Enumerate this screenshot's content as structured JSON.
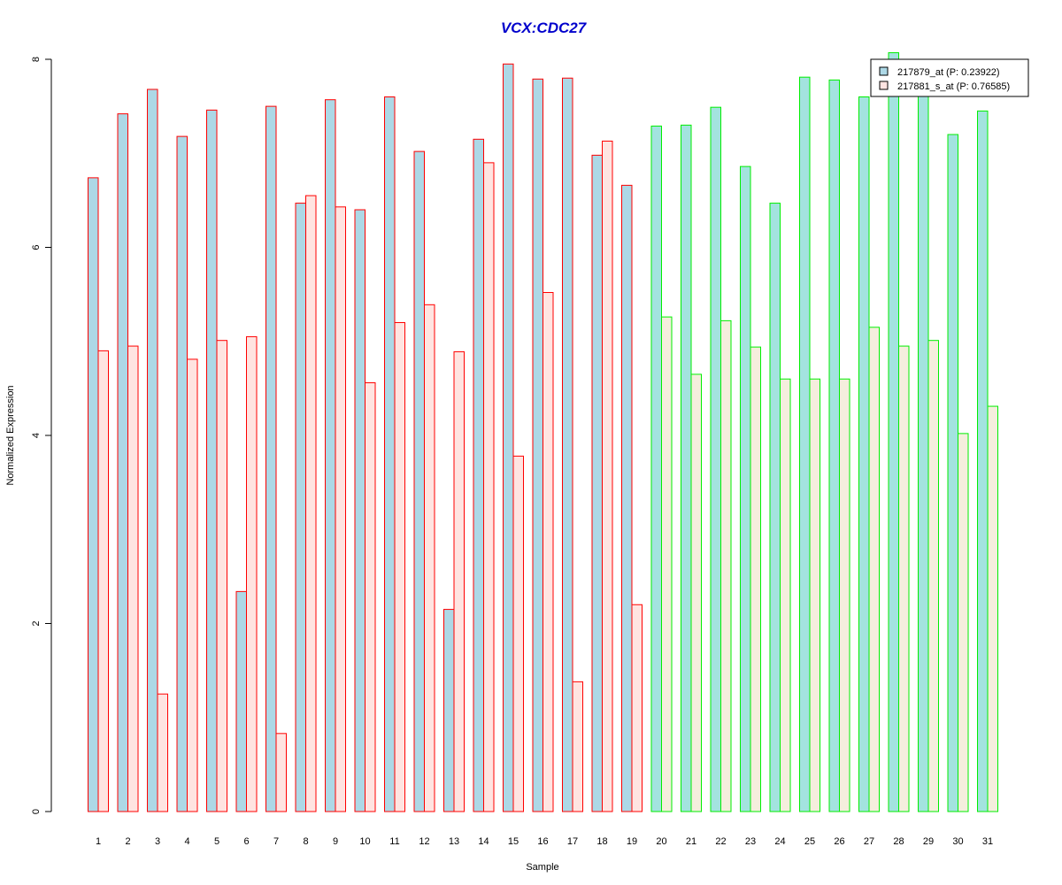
{
  "chart_data": {
    "type": "bar",
    "title": "VCX:CDC27",
    "xlabel": "Sample",
    "ylabel": "Normalized Expression",
    "ylim": [
      0,
      8
    ],
    "yticks": [
      0,
      2,
      4,
      6,
      8
    ],
    "grid": false,
    "legend_position": "top-right",
    "categories": [
      "1",
      "2",
      "3",
      "4",
      "5",
      "6",
      "7",
      "8",
      "9",
      "10",
      "11",
      "12",
      "13",
      "14",
      "15",
      "16",
      "17",
      "18",
      "19",
      "20",
      "21",
      "22",
      "23",
      "24",
      "25",
      "26",
      "27",
      "28",
      "29",
      "30",
      "31"
    ],
    "groups": [
      {
        "samples": [
          "1",
          "2",
          "3",
          "4",
          "5",
          "6",
          "7",
          "8",
          "9",
          "10",
          "11",
          "12",
          "13",
          "14",
          "15",
          "16",
          "17",
          "18",
          "19"
        ],
        "border_color": "#ff0000"
      },
      {
        "samples": [
          "20",
          "21",
          "22",
          "23",
          "24",
          "25",
          "26",
          "27",
          "28",
          "29",
          "30",
          "31"
        ],
        "border_color": "#00ee00"
      }
    ],
    "series": [
      {
        "name": "217879_at (P: 0.23922)",
        "values": [
          6.74,
          7.42,
          7.68,
          7.18,
          7.46,
          2.34,
          7.5,
          6.47,
          7.57,
          6.4,
          7.6,
          7.02,
          2.15,
          7.15,
          7.95,
          7.79,
          7.8,
          6.98,
          6.66,
          7.29,
          7.3,
          7.49,
          6.86,
          6.47,
          7.81,
          7.78,
          7.6,
          8.07,
          7.63,
          7.2,
          7.45
        ],
        "fill_group1": "#add8e6",
        "fill_group2": "#a3e3df"
      },
      {
        "name": "217881_s_at (P: 0.76585)",
        "values": [
          4.9,
          4.95,
          1.25,
          4.81,
          5.01,
          5.05,
          0.83,
          6.55,
          6.43,
          4.56,
          5.2,
          5.39,
          4.89,
          6.9,
          3.78,
          5.52,
          1.38,
          7.13,
          2.2,
          5.26,
          4.65,
          5.22,
          4.94,
          4.6,
          4.6,
          4.6,
          5.15,
          4.95,
          5.01,
          4.02,
          4.31
        ],
        "fill_group1": "#ffe4e1",
        "fill_group2": "#f5eedd"
      }
    ],
    "title_color": "#0000cc",
    "legend_swatch_colors": [
      "#add8e6",
      "#ffe4e1"
    ]
  }
}
